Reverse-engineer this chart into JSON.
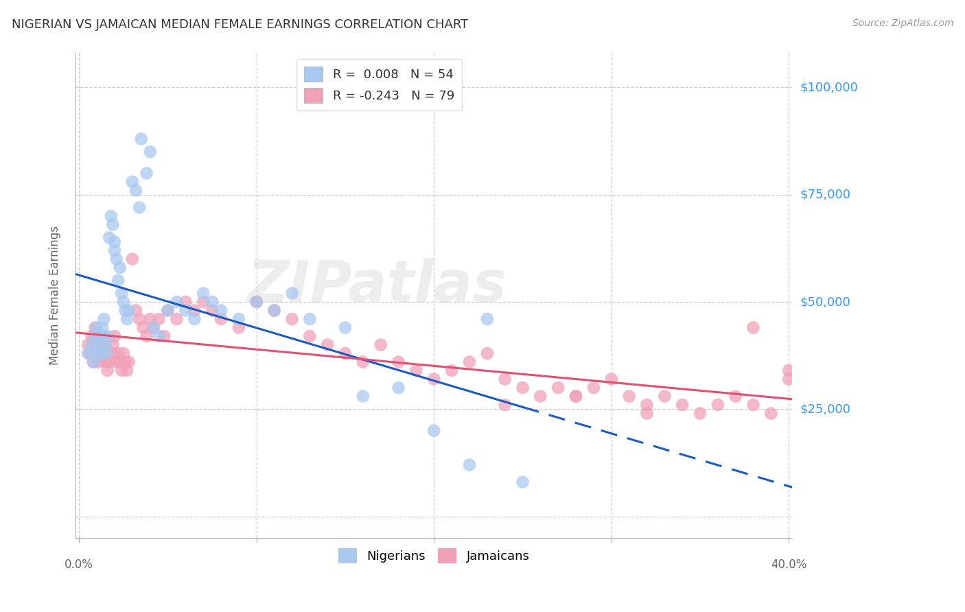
{
  "title": "NIGERIAN VS JAMAICAN MEDIAN FEMALE EARNINGS CORRELATION CHART",
  "source": "Source: ZipAtlas.com",
  "ylabel": "Median Female Earnings",
  "watermark": "ZIPatlas",
  "yticks": [
    0,
    25000,
    50000,
    75000,
    100000
  ],
  "ylim": [
    -5000,
    108000
  ],
  "xlim": [
    -0.002,
    0.402
  ],
  "nigerian_color": "#a8c8f0",
  "jamaican_color": "#f0a0b8",
  "nigerian_trend_color": "#1a5bbf",
  "jamaican_trend_color": "#e05070",
  "grid_color": "#cccccc",
  "bg_color": "#ffffff",
  "axis_label_color": "#3399ff",
  "title_color": "#333333",
  "nigerians_x": [
    0.005,
    0.007,
    0.008,
    0.009,
    0.01,
    0.01,
    0.011,
    0.012,
    0.012,
    0.013,
    0.014,
    0.015,
    0.015,
    0.016,
    0.017,
    0.018,
    0.019,
    0.02,
    0.02,
    0.021,
    0.022,
    0.023,
    0.024,
    0.025,
    0.026,
    0.027,
    0.028,
    0.03,
    0.032,
    0.034,
    0.035,
    0.038,
    0.04,
    0.042,
    0.045,
    0.05,
    0.055,
    0.06,
    0.065,
    0.07,
    0.075,
    0.08,
    0.09,
    0.1,
    0.11,
    0.12,
    0.13,
    0.15,
    0.16,
    0.18,
    0.2,
    0.22,
    0.23,
    0.25
  ],
  "nigerians_y": [
    38000,
    40000,
    36000,
    42000,
    44000,
    38000,
    40000,
    42000,
    38000,
    44000,
    46000,
    40000,
    38000,
    42000,
    65000,
    70000,
    68000,
    62000,
    64000,
    60000,
    55000,
    58000,
    52000,
    50000,
    48000,
    46000,
    48000,
    78000,
    76000,
    72000,
    88000,
    80000,
    85000,
    44000,
    42000,
    48000,
    50000,
    48000,
    46000,
    52000,
    50000,
    48000,
    46000,
    50000,
    48000,
    52000,
    46000,
    44000,
    28000,
    30000,
    20000,
    12000,
    46000,
    8000
  ],
  "jamaicans_x": [
    0.005,
    0.006,
    0.007,
    0.008,
    0.009,
    0.01,
    0.01,
    0.011,
    0.012,
    0.013,
    0.014,
    0.015,
    0.015,
    0.016,
    0.017,
    0.018,
    0.019,
    0.02,
    0.021,
    0.022,
    0.023,
    0.024,
    0.025,
    0.026,
    0.027,
    0.028,
    0.03,
    0.032,
    0.034,
    0.036,
    0.038,
    0.04,
    0.042,
    0.045,
    0.048,
    0.05,
    0.055,
    0.06,
    0.065,
    0.07,
    0.075,
    0.08,
    0.09,
    0.1,
    0.11,
    0.12,
    0.13,
    0.14,
    0.15,
    0.16,
    0.17,
    0.18,
    0.19,
    0.2,
    0.21,
    0.22,
    0.23,
    0.24,
    0.25,
    0.26,
    0.27,
    0.28,
    0.29,
    0.3,
    0.31,
    0.32,
    0.33,
    0.34,
    0.35,
    0.36,
    0.37,
    0.38,
    0.39,
    0.4,
    0.24,
    0.28,
    0.32,
    0.38,
    0.4
  ],
  "jamaicans_y": [
    40000,
    38000,
    42000,
    36000,
    44000,
    38000,
    40000,
    36000,
    38000,
    40000,
    42000,
    36000,
    38000,
    34000,
    36000,
    38000,
    40000,
    42000,
    36000,
    38000,
    36000,
    34000,
    38000,
    36000,
    34000,
    36000,
    60000,
    48000,
    46000,
    44000,
    42000,
    46000,
    44000,
    46000,
    42000,
    48000,
    46000,
    50000,
    48000,
    50000,
    48000,
    46000,
    44000,
    50000,
    48000,
    46000,
    42000,
    40000,
    38000,
    36000,
    40000,
    36000,
    34000,
    32000,
    34000,
    36000,
    38000,
    32000,
    30000,
    28000,
    30000,
    28000,
    30000,
    32000,
    28000,
    26000,
    28000,
    26000,
    24000,
    26000,
    28000,
    26000,
    24000,
    34000,
    26000,
    28000,
    24000,
    44000,
    32000
  ]
}
